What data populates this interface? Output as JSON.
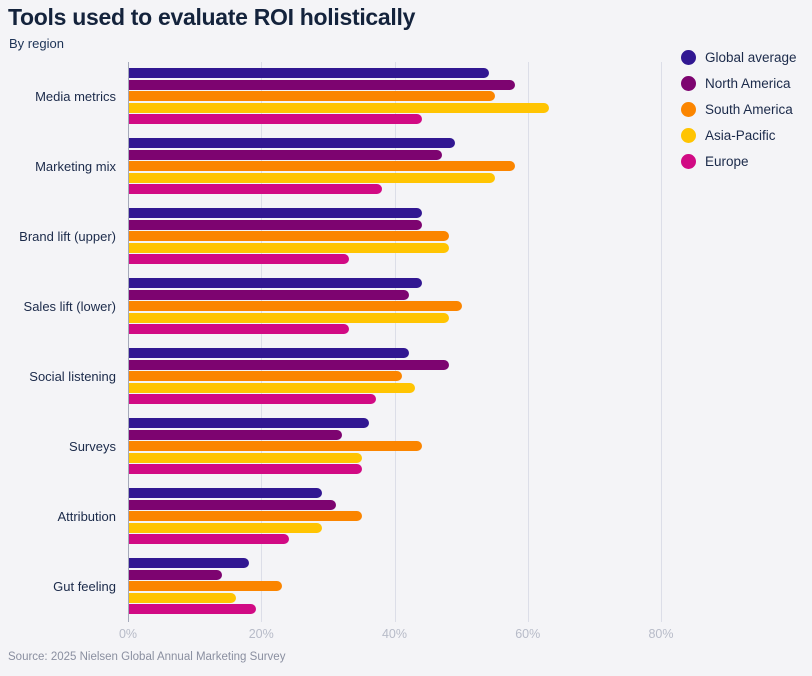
{
  "page": {
    "title": "Tools used to evaluate ROI holistically",
    "subtitle": "By region",
    "source": "Source: 2025 Nielsen Global Annual Marketing Survey"
  },
  "colors": {
    "background": "#f4f4f7",
    "title_text": "#14233c",
    "subtitle_text": "#1d3356",
    "category_text": "#1b2a4a",
    "tick_text": "#b7bbc8",
    "source_text": "#8a8fa0",
    "gridline": "#dcdee8",
    "axis_line": "#a4a9ba"
  },
  "chart_data": {
    "type": "bar",
    "orientation": "horizontal",
    "title": "Tools used to evaluate ROI holistically",
    "subtitle": "By region",
    "categories": [
      "Media metrics",
      "Marketing mix",
      "Brand lift (upper)",
      "Sales lift (lower)",
      "Social listening",
      "Surveys",
      "Attribution",
      "Gut feeling"
    ],
    "series": [
      {
        "name": "Global average",
        "color": "#311792",
        "values": [
          54,
          49,
          44,
          44,
          42,
          36,
          29,
          18
        ]
      },
      {
        "name": "North America",
        "color": "#7d0470",
        "values": [
          58,
          47,
          44,
          42,
          48,
          32,
          31,
          14
        ]
      },
      {
        "name": "South America",
        "color": "#fb8500",
        "values": [
          55,
          58,
          48,
          50,
          41,
          44,
          35,
          23
        ]
      },
      {
        "name": "Asia-Pacific",
        "color": "#ffc402",
        "values": [
          63,
          55,
          48,
          48,
          43,
          35,
          29,
          16
        ]
      },
      {
        "name": "Europe",
        "color": "#d10a84",
        "values": [
          44,
          38,
          33,
          33,
          37,
          35,
          24,
          19
        ]
      }
    ],
    "value_unit": "%",
    "tick_values": [
      0,
      20,
      40,
      60,
      80
    ],
    "tick_labels": [
      "0%",
      "20%",
      "40%",
      "60%",
      "80%"
    ],
    "xlim": [
      0,
      100
    ],
    "grid": true,
    "legend_position": "top-right"
  }
}
